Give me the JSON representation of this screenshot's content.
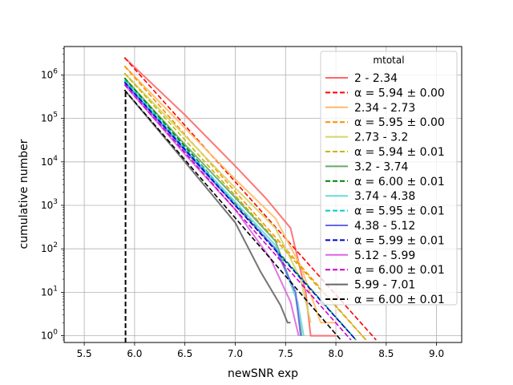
{
  "chart_data": {
    "type": "line",
    "xlabel": "newSNR exp",
    "ylabel": "cumulative number",
    "xlim": [
      5.3,
      9.25
    ],
    "ylim": [
      0.7,
      4500000
    ],
    "yscale": "log",
    "grid": true,
    "legend_title": "mtotal",
    "legend_position": "top-right",
    "x_ticks": [
      {
        "value": 5.5,
        "label": "5.5"
      },
      {
        "value": 6.0,
        "label": "6.0"
      },
      {
        "value": 6.5,
        "label": "6.5"
      },
      {
        "value": 7.0,
        "label": "7.0"
      },
      {
        "value": 7.5,
        "label": "7.5"
      },
      {
        "value": 8.0,
        "label": "8.0"
      },
      {
        "value": 8.5,
        "label": "8.5"
      },
      {
        "value": 9.0,
        "label": "9.0"
      }
    ],
    "y_ticks": [
      {
        "value": 1,
        "base": "10",
        "exp": "0"
      },
      {
        "value": 10,
        "base": "10",
        "exp": "1"
      },
      {
        "value": 100,
        "base": "10",
        "exp": "2"
      },
      {
        "value": 1000,
        "base": "10",
        "exp": "3"
      },
      {
        "value": 10000,
        "base": "10",
        "exp": "4"
      },
      {
        "value": 100000,
        "base": "10",
        "exp": "5"
      },
      {
        "value": 1000000,
        "base": "10",
        "exp": "6"
      }
    ],
    "series": [
      {
        "name": "2 - 2.34",
        "style": "solid",
        "color": "#ff6666",
        "x": [
          5.9,
          6.5,
          7.0,
          7.3,
          7.55,
          7.7,
          7.75,
          8.0
        ],
        "y": [
          2500000,
          120000,
          8000,
          1500,
          300,
          10,
          1,
          1
        ]
      },
      {
        "name": "α = 5.94 ± 0.00",
        "style": "dashed",
        "color": "#ff0000",
        "x": [
          5.9,
          8.4
        ],
        "y": [
          2500000,
          0.8
        ]
      },
      {
        "name": "2.34 - 2.73",
        "style": "solid",
        "color": "#ffbb66",
        "x": [
          5.9,
          6.5,
          7.0,
          7.4,
          7.65,
          7.85,
          8.0
        ],
        "y": [
          1600000,
          60000,
          4000,
          500,
          40,
          2,
          2
        ]
      },
      {
        "name": "α = 5.95 ± 0.00",
        "style": "dashed",
        "color": "#ff8c00",
        "x": [
          5.9,
          8.3
        ],
        "y": [
          1600000,
          0.8
        ]
      },
      {
        "name": "2.73 - 3.2",
        "style": "solid",
        "color": "#d4d466",
        "x": [
          5.9,
          6.5,
          7.0,
          7.4,
          7.65,
          7.75
        ],
        "y": [
          1100000,
          40000,
          2500,
          300,
          20,
          2
        ]
      },
      {
        "name": "α = 5.94 ± 0.01",
        "style": "dashed",
        "color": "#c8b400",
        "x": [
          5.9,
          8.3
        ],
        "y": [
          1100000,
          0.8
        ]
      },
      {
        "name": "3.2 - 3.74",
        "style": "solid",
        "color": "#66aa66",
        "x": [
          5.9,
          6.5,
          7.0,
          7.4,
          7.6,
          7.66
        ],
        "y": [
          850000,
          25000,
          1500,
          150,
          8,
          1
        ]
      },
      {
        "name": "α = 6.00 ± 0.01",
        "style": "dashed",
        "color": "#008000",
        "x": [
          5.9,
          8.2
        ],
        "y": [
          850000,
          0.8
        ]
      },
      {
        "name": "3.74 - 4.38",
        "style": "solid",
        "color": "#66dddd",
        "x": [
          5.9,
          6.5,
          7.0,
          7.4,
          7.62,
          7.68
        ],
        "y": [
          750000,
          20000,
          1200,
          120,
          6,
          1
        ]
      },
      {
        "name": "α = 5.95 ± 0.01",
        "style": "dashed",
        "color": "#00cccc",
        "x": [
          5.9,
          8.2
        ],
        "y": [
          750000,
          0.8
        ]
      },
      {
        "name": "4.38 - 5.12",
        "style": "solid",
        "color": "#6666ee",
        "x": [
          5.9,
          6.5,
          7.0,
          7.4,
          7.6,
          7.65
        ],
        "y": [
          680000,
          18000,
          1000,
          100,
          10,
          1
        ]
      },
      {
        "name": "α = 5.99 ± 0.01",
        "style": "dashed",
        "color": "#0000cc",
        "x": [
          5.9,
          8.2
        ],
        "y": [
          680000,
          0.8
        ]
      },
      {
        "name": "5.12 - 5.99",
        "style": "solid",
        "color": "#dd66dd",
        "x": [
          5.9,
          6.5,
          7.0,
          7.35,
          7.55,
          7.63
        ],
        "y": [
          600000,
          15000,
          800,
          60,
          6,
          1
        ]
      },
      {
        "name": "α = 6.00 ± 0.01",
        "style": "dashed",
        "color": "#cc00cc",
        "x": [
          5.9,
          8.15
        ],
        "y": [
          600000,
          0.8
        ]
      },
      {
        "name": "5.99 - 7.01",
        "style": "solid",
        "color": "#666666",
        "x": [
          5.9,
          6.5,
          7.0,
          7.25,
          7.45,
          7.52,
          7.55
        ],
        "y": [
          450000,
          10000,
          400,
          30,
          5,
          2,
          2
        ]
      },
      {
        "name": "α = 6.00 ± 0.01",
        "style": "dashed",
        "color": "#000000",
        "x": [
          5.9,
          8.05
        ],
        "y": [
          450000,
          0.8
        ]
      }
    ],
    "vertical_markers": [
      {
        "x": 5.91,
        "from": 0.7,
        "to": 450000,
        "color": "#000000",
        "style": "dashed"
      }
    ]
  }
}
